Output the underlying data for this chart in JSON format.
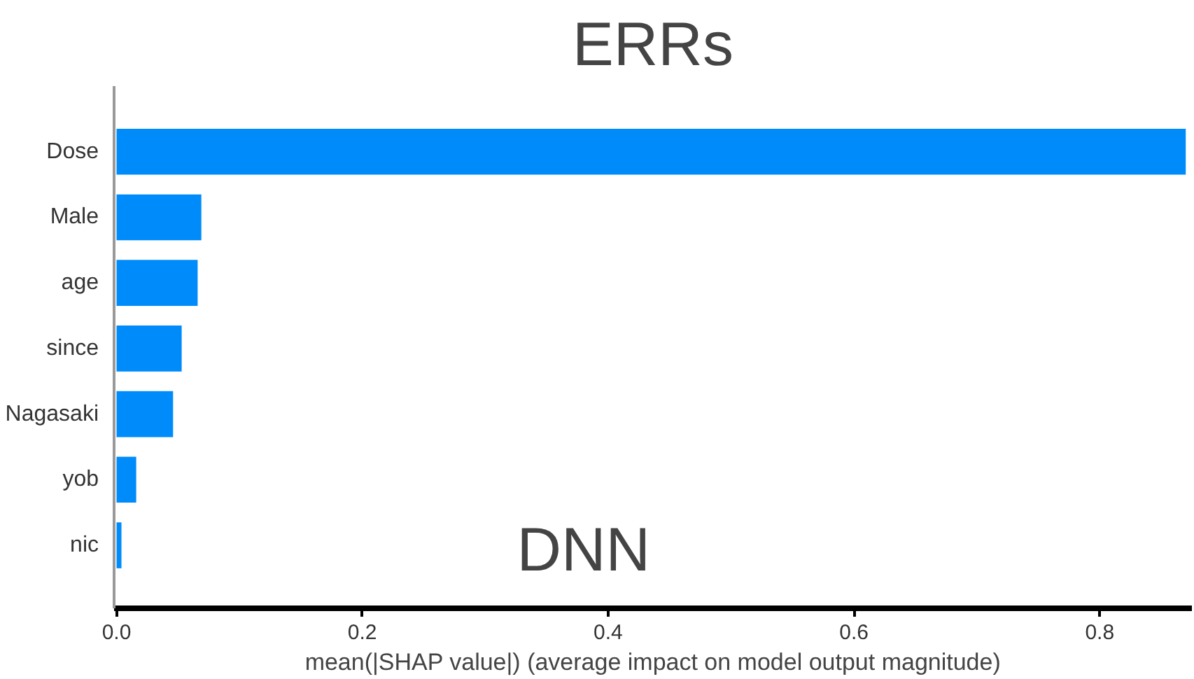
{
  "chart_data": {
    "type": "bar",
    "orientation": "horizontal",
    "title": "ERRs",
    "xlabel": "mean(|SHAP value|) (average impact on model output magnitude)",
    "categories": [
      "Dose",
      "Male",
      "age",
      "since",
      "Nagasaki",
      "yob",
      "nic"
    ],
    "values": [
      0.87,
      0.069,
      0.066,
      0.053,
      0.046,
      0.016,
      0.004
    ],
    "color": "#008bfb",
    "xlim": [
      -0.002,
      0.875
    ],
    "xticks": [
      {
        "value": 0,
        "label": "0.0"
      },
      0.2,
      0.4,
      0.6,
      0.8
    ],
    "grid": false,
    "annotations": [
      "DNN"
    ]
  }
}
